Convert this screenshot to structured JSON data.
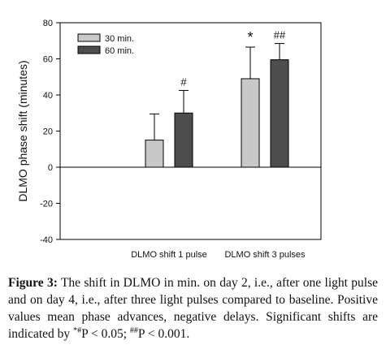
{
  "chart_data": {
    "type": "bar",
    "ylabel": "DLMO phase shift (minutes)",
    "xlabel": "",
    "ylim": [
      -40,
      80
    ],
    "yticks": [
      -40,
      -20,
      0,
      20,
      40,
      60,
      80
    ],
    "grid": false,
    "legend": "top-left",
    "categories": [
      "DLMO shift 1 pulse",
      "DLMO shift 3 pulses"
    ],
    "series": [
      {
        "name": "30 min.",
        "color": "#c8c8c8",
        "values": [
          15,
          49
        ],
        "errors": [
          14.5,
          17.5
        ],
        "significance": [
          "",
          "*"
        ]
      },
      {
        "name": "60 min.",
        "color": "#4d4d4d",
        "values": [
          30,
          59.5
        ],
        "errors": [
          12.5,
          9
        ],
        "significance": [
          "#",
          "##"
        ]
      }
    ]
  },
  "caption": {
    "figure_label": "Figure 3:",
    "text_1": " The shift in DLMO in min. on day 2, i.e., after one light pulse and on day 4, i.e., after three light pulses compared to baseline. Positive values mean phase advances, negative delays. Significant shifts are indicated by ",
    "sup_1": "*#",
    "text_2": "P < 0.05; ",
    "sup_2": "##",
    "text_3": "P < 0.001."
  }
}
